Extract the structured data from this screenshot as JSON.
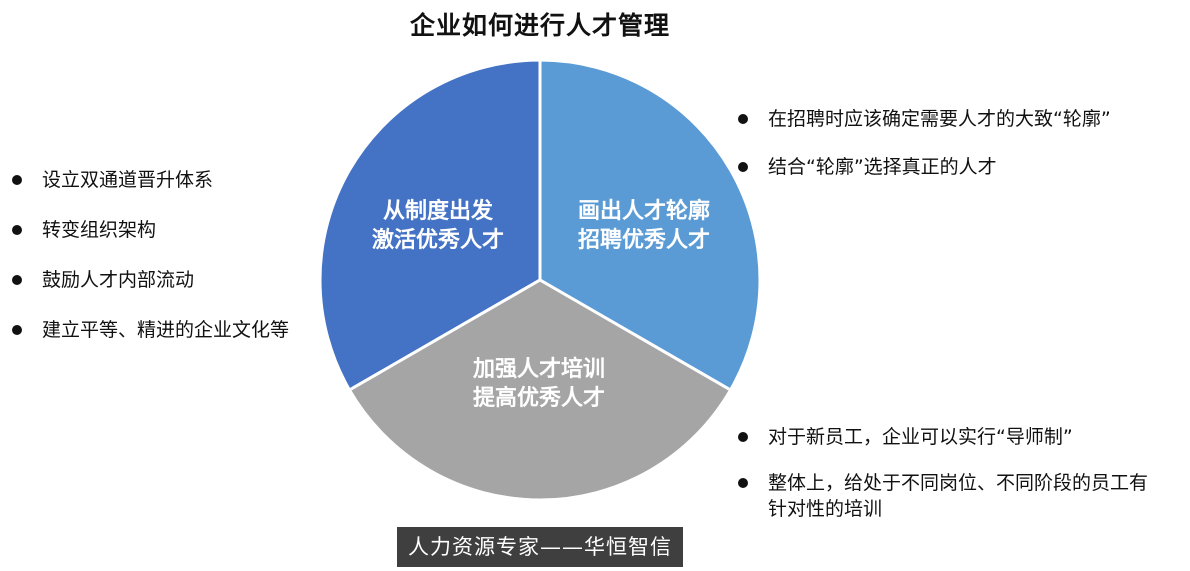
{
  "title": "企业如何进行人才管理",
  "segments": {
    "left": {
      "line1": "从制度出发",
      "line2": "激活优秀人才",
      "color": "#4472C4"
    },
    "right": {
      "line1": "画出人才轮廓",
      "line2": "招聘优秀人才",
      "color": "#5B9BD5"
    },
    "bottom": {
      "line1": "加强人才培训",
      "line2": "提高优秀人才",
      "color": "#A5A5A5"
    }
  },
  "left_bullets": [
    "设立双通道晋升体系",
    "转变组织架构",
    "鼓励人才内部流动",
    "建立平等、精进的企业文化等"
  ],
  "right_top_bullets": [
    "在招聘时应该确定需要人才的大致“轮廓”",
    "结合“轮廓”选择真正的人才"
  ],
  "right_bottom_bullets": [
    "对于新员工，企业可以实行“导师制”",
    "整体上，给处于不同岗位、不同阶段的员工有针对性的培训"
  ],
  "footer": "人力资源专家——华恒智信"
}
